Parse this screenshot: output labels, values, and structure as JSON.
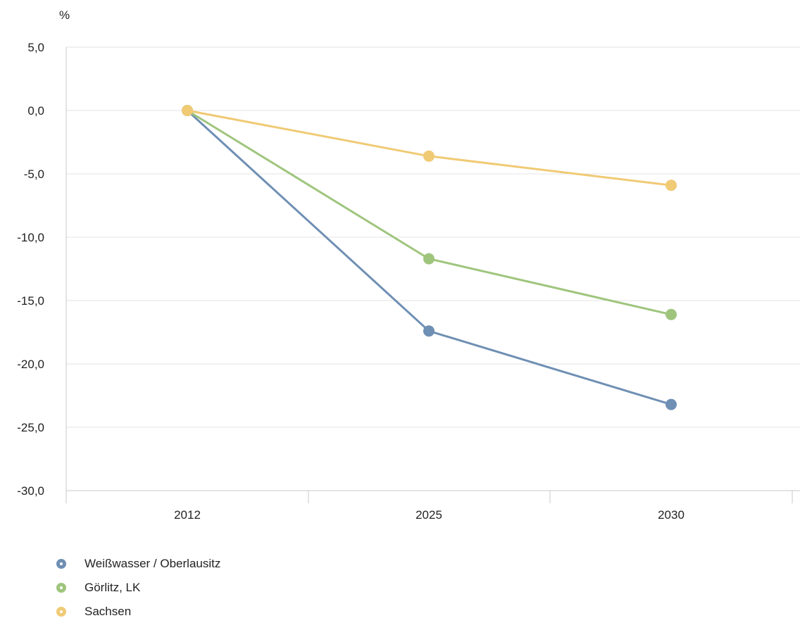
{
  "chart_data": {
    "type": "line",
    "unit_label": "%",
    "categories": [
      "2012",
      "2025",
      "2030"
    ],
    "ylim": [
      -30,
      5
    ],
    "y_ticks": [
      5,
      0,
      -5,
      -10,
      -15,
      -20,
      -25,
      -30
    ],
    "y_tick_labels": [
      "5,0",
      "0,0",
      "-5,0",
      "-10,0",
      "-15,0",
      "-20,0",
      "-25,0",
      "-30,0"
    ],
    "grid": true,
    "legend_position": "bottom-left",
    "series": [
      {
        "name": "Weißwasser / Oberlausitz",
        "color": "#6f8fb4",
        "values": [
          0,
          -17.4,
          -23.2
        ]
      },
      {
        "name": "Görlitz, LK",
        "color": "#9fc57d",
        "values": [
          0,
          -11.7,
          -16.1
        ]
      },
      {
        "name": "Sachsen",
        "color": "#f0ca75",
        "values": [
          0,
          -3.6,
          -5.9
        ]
      }
    ]
  }
}
